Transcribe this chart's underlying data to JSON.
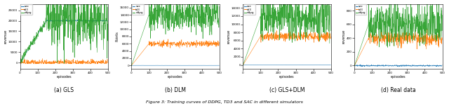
{
  "titles": [
    "(a) GLS",
    "(b) DLM",
    "(c) GLS+DLM",
    "(d) Real data"
  ],
  "caption": "Figure 3: Training curves of DDPG, TD3 and SAC in different simulators",
  "legend_labels": [
    "sac",
    "td3",
    "ddpg"
  ],
  "legend_colors": [
    "#1f77b4",
    "#ff7f0e",
    "#2ca02c"
  ],
  "fig_width": 6.4,
  "fig_height": 1.51,
  "subplot_ylabels": [
    "revenue",
    "Points",
    "revenue",
    "revenue"
  ],
  "subplot_xlabel": "episodes",
  "gls": {
    "sac_jump": 150,
    "sac_level": 20000,
    "td3_level": 200,
    "td3_noise": 600,
    "ddpg_level": 20000,
    "ddpg_noise": 7000,
    "ylim": [
      -3000,
      28000
    ]
  },
  "dlm": {
    "sac_level": 0,
    "td3_jump": 100,
    "td3_level": 6000,
    "td3_noise": 400,
    "ddpg_jump": 100,
    "ddpg_level": 14000,
    "ddpg_noise": 2500,
    "ylim": [
      -1000,
      17000
    ]
  },
  "glsdlm": {
    "sac_level": 0,
    "td3_jump": 100,
    "td3_level": 7000,
    "td3_noise": 500,
    "ddpg_jump": 100,
    "ddpg_level": 12000,
    "ddpg_noise": 2800,
    "ylim": [
      -1000,
      15000
    ]
  },
  "real": {
    "sac_level": 0,
    "td3_jump": 80,
    "td3_level": 400,
    "td3_noise": 50,
    "ddpg_jump": 80,
    "ddpg_level": 600,
    "ddpg_noise": 150,
    "ylim": [
      -50,
      900
    ]
  }
}
